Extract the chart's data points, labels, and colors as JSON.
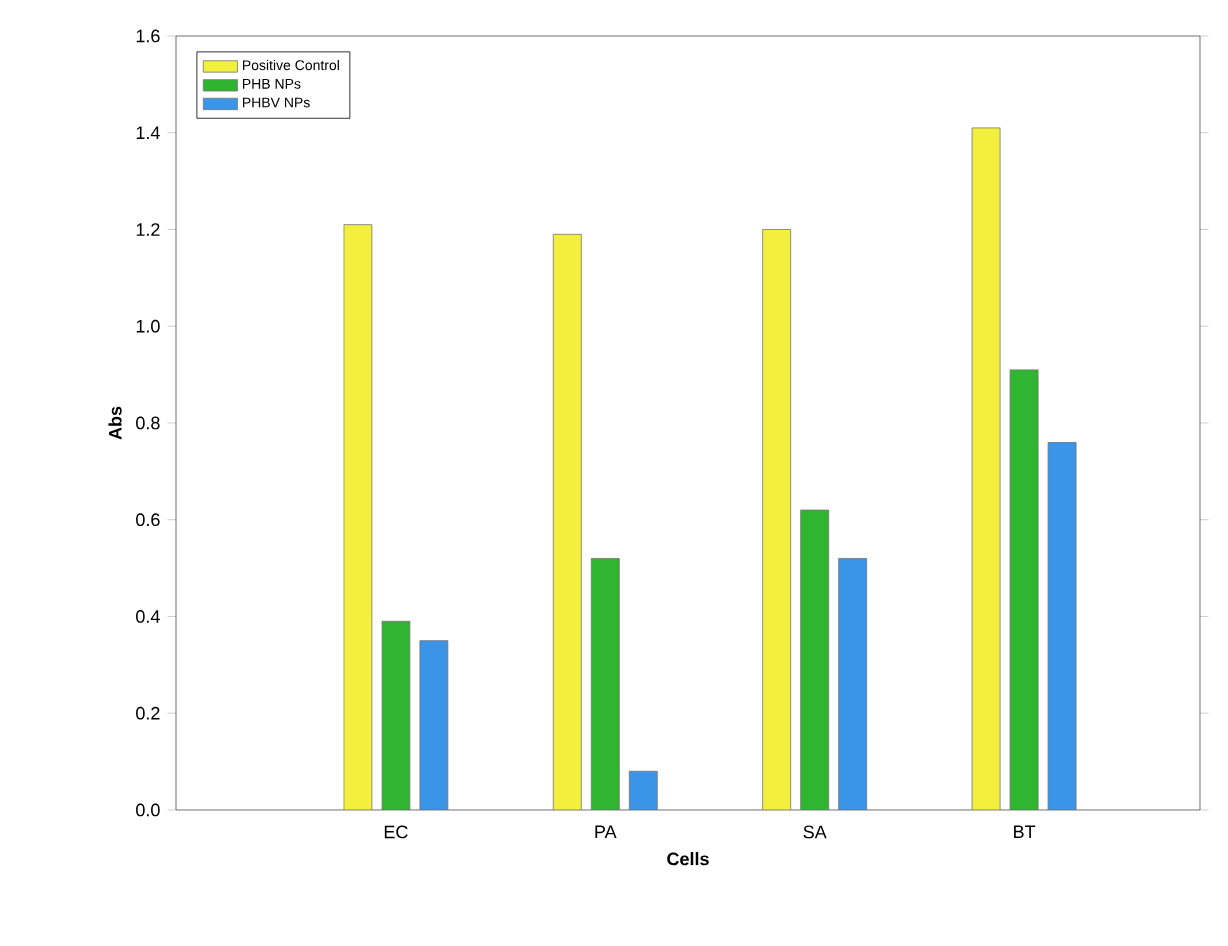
{
  "chart_data": {
    "type": "bar",
    "xlabel": "Cells",
    "ylabel": "Abs",
    "categories": [
      "EC",
      "PA",
      "SA",
      "BT"
    ],
    "series": [
      {
        "name": "Positive Control",
        "color": "#f2f03c",
        "values": [
          1.21,
          1.19,
          1.2,
          1.41
        ]
      },
      {
        "name": "PHB NPs",
        "color": "#2fb52f",
        "values": [
          0.39,
          0.52,
          0.62,
          0.91
        ]
      },
      {
        "name": "PHBV NPs",
        "color": "#3a95e8",
        "values": [
          0.35,
          0.08,
          0.52,
          0.76
        ]
      }
    ],
    "ylim": [
      0,
      1.6
    ],
    "yticks": [
      {
        "value": 0,
        "label": "0.0"
      },
      {
        "value": 0.2,
        "label": "0.2"
      },
      {
        "value": 0.4,
        "label": "0.4"
      },
      {
        "value": 0.6,
        "label": "0.6"
      },
      {
        "value": 0.8,
        "label": "0.8"
      },
      {
        "value": 1,
        "label": "1.0"
      },
      {
        "value": 1.2,
        "label": "1.2"
      },
      {
        "value": 1.4,
        "label": "1.4"
      },
      {
        "value": 1.6,
        "label": "1.6"
      }
    ],
    "legend": "top left"
  }
}
